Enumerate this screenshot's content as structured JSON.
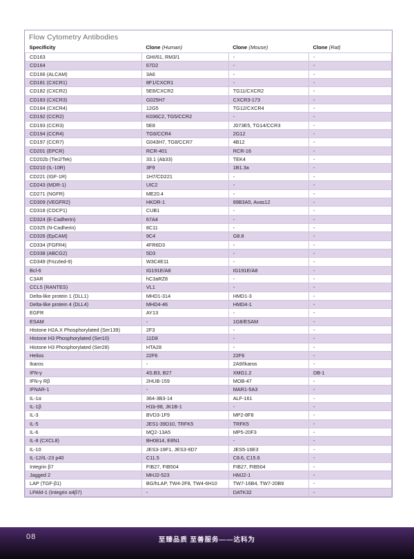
{
  "table": {
    "title": "Flow Cytometry Antibodies",
    "columns": [
      {
        "label": "Specificity",
        "sublabel": ""
      },
      {
        "label": "Clone",
        "sublabel": "(Human)"
      },
      {
        "label": "Clone",
        "sublabel": "(Mouse)"
      },
      {
        "label": "Clone",
        "sublabel": "(Rat)"
      }
    ],
    "rows": [
      [
        "CD163",
        "GHI/61, RM3/1",
        "-",
        "-"
      ],
      [
        "CD164",
        "67D2",
        "-",
        "-"
      ],
      [
        "CD166 (ALCAM)",
        "3A6",
        "-",
        "-"
      ],
      [
        "CD181 (CXCR1)",
        "8F1/CXCR1",
        "-",
        "-"
      ],
      [
        "CD182 (CXCR2)",
        "5E8/CXCR2",
        "TG11/CXCR2",
        "-"
      ],
      [
        "CD183 (CXCR3)",
        "G025H7",
        "CXCR3-173",
        "-"
      ],
      [
        "CD184 (CXCR4)",
        "12G5",
        "TG12/CXCR4",
        "-"
      ],
      [
        "CD192 (CCR2)",
        "K036C2, TG5/CCR2",
        "-",
        "-"
      ],
      [
        "CD193 (CCR3)",
        "5E8",
        "J073E5, TG14/CCR3",
        "-"
      ],
      [
        "CD194 (CCR4)",
        "TG6/CCR4",
        "2G12",
        "-"
      ],
      [
        "CD197 (CCR7)",
        "G043H7, TG8/CCR7",
        "4B12",
        "-"
      ],
      [
        "CD201 (EPCR)",
        "RCR-401",
        "RCR-16",
        "-"
      ],
      [
        "CD202b (Tie2/Tek)",
        "33.1 (Ab33)",
        "TEK4",
        "-"
      ],
      [
        "CD210 (IL-10R)",
        "3F9",
        "1B1.3a",
        "-"
      ],
      [
        "CD221 (IGF-1R)",
        "1H7/CD221",
        "-",
        "-"
      ],
      [
        "CD243 (MDR-1)",
        "UIC2",
        "-",
        "-"
      ],
      [
        "CD271 (NGFR)",
        "ME20.4",
        "-",
        "-"
      ],
      [
        "CD309 (VEGFR2)",
        "HKDR-1",
        "89B3A5, Avas12",
        "-"
      ],
      [
        "CD318 (CDCP1)",
        "CUB1",
        "-",
        "-"
      ],
      [
        "CD324 (E-Cadherin)",
        "67A4",
        "-",
        "-"
      ],
      [
        "CD325 (N-Cadherin)",
        "8C11",
        "-",
        "-"
      ],
      [
        "CD326 (EpCAM)",
        "9C4",
        "G8.8",
        "-"
      ],
      [
        "CD334 (FGFR4)",
        "4FR6D3",
        "-",
        "-"
      ],
      [
        "CD338 (ABCG2)",
        "5D3",
        "-",
        "-"
      ],
      [
        "CD349 (Frizzled-9)",
        "W3C4E11",
        "-",
        "-"
      ],
      [
        "Bcl-6",
        "IG191E/A8",
        "IG191E/A8",
        "-"
      ],
      [
        "C3AR",
        "hC3aRZ8",
        "-",
        "-"
      ],
      [
        "CCL5 (RANTES)",
        "VL1",
        "-",
        "-"
      ],
      [
        "Delta-like protein 1 (DLL1)",
        "MHD1-314",
        "HMD1-3",
        "-"
      ],
      [
        "Delta-like protein 4 (DLL4)",
        "MHD4-46",
        "HMD4-1",
        "-"
      ],
      [
        "EGFR",
        "AY13",
        "-",
        "-"
      ],
      [
        "ESAM",
        "-",
        "1G8/ESAM",
        "-"
      ],
      [
        "Histone H2A.X Phosphorylated (Ser139)",
        "2F3",
        "-",
        "-"
      ],
      [
        "Histone H3 Phosphorylated (Ser10)",
        "11D8",
        "-",
        "-"
      ],
      [
        "Histone H3 Phosphorylated (Ser28)",
        "HTA28",
        "-",
        "-"
      ],
      [
        "Helios",
        "22F6",
        "22F6",
        "-"
      ],
      [
        "Ikaros",
        "-",
        "2A9/Ikaros",
        "-"
      ],
      [
        "IFN-γ",
        "4S.B3, B27",
        "XMG1.2",
        "DB-1"
      ],
      [
        "IFN-γ Rβ",
        "2HUB-159",
        "MOB-47",
        "-"
      ],
      [
        "IFNAR-1",
        "-",
        "MAR1-5A3",
        "-"
      ],
      [
        "IL-1α",
        "364-3B3-14",
        "ALF-161",
        "-"
      ],
      [
        "IL-1β",
        "H1b-98, JK1B-1",
        "-",
        "-"
      ],
      [
        "IL-3",
        "BVD3-1F9",
        "MP2-8F8",
        "-"
      ],
      [
        "IL-5",
        "JES1-39D10, TRFK5",
        "TRFK5",
        "-"
      ],
      [
        "IL-6",
        "MQ2-13A5",
        "MP5-20F3",
        "-"
      ],
      [
        "IL-8 (CXCL8)",
        "BH0814, E8N1",
        "-",
        "-"
      ],
      [
        "IL-10",
        "JES3-19F1, JES3-9D7",
        "JES5-16E3",
        "-"
      ],
      [
        "IL-12/IL-23 p40",
        "C11.5",
        "C8.6, C15.6",
        "-"
      ],
      [
        "Integrin β7",
        "FIB27, FIB504",
        "FIB27, FIB504",
        "-"
      ],
      [
        "Jagged 2",
        "MHJ2-523",
        "HMJ2-1",
        "-"
      ],
      [
        "LAP (TGF-β1)",
        "BG/hLAP, TW4-2F8, TW4-6H10",
        "TW7-16B4, TW7-20B9",
        "-"
      ],
      [
        "LPAM-1 (Integrin α4β7)",
        "-",
        "DATK32",
        "-"
      ]
    ]
  },
  "footer": {
    "page_number": "08",
    "slogan": "至臻品质 至善服务——达科为"
  },
  "colors": {
    "stripe": "#ded3e8",
    "grid_border": "#cfc2dc",
    "outer_border": "#ab98bf",
    "title_text": "#63656b",
    "footer_top": "#4b2a68",
    "footer_bottom": "#0d0910"
  }
}
